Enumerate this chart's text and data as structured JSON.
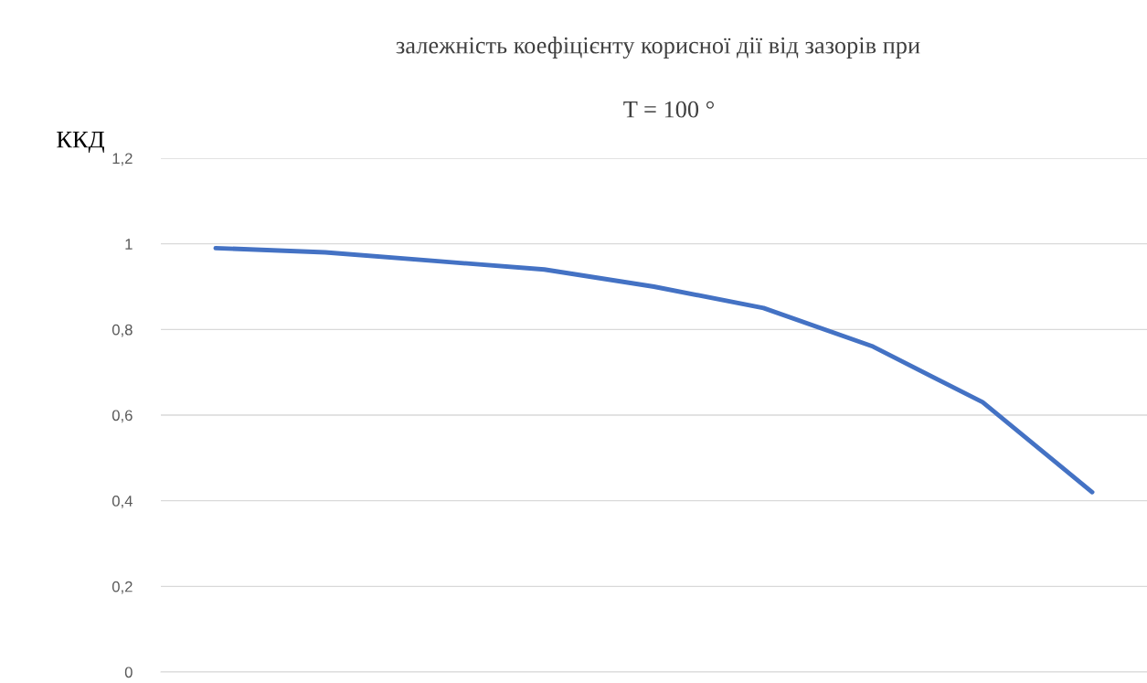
{
  "chart_data": {
    "type": "line",
    "title": "залежність коефіцієнту корисної дії від зазорів при",
    "subtitle": "T = 100 °",
    "ylabel": "ККД",
    "categories": [
      null,
      null,
      null,
      null,
      null,
      null,
      null,
      null,
      null
    ],
    "series": [
      {
        "color": "#4472c4",
        "values": [
          0.99,
          0.98,
          0.96,
          0.94,
          0.9,
          0.85,
          0.76,
          0.63,
          0.42
        ]
      }
    ],
    "ylim": [
      0,
      1.2
    ],
    "yticks": [
      0,
      {
        "value": 0.2,
        "label": "0,2"
      },
      {
        "value": 0.4,
        "label": "0,4"
      },
      {
        "value": 0.6,
        "label": "0,6"
      },
      {
        "value": 0.8,
        "label": "0,8"
      },
      1,
      {
        "value": 1.2,
        "label": "1,2"
      }
    ],
    "grid": "y",
    "tick_labels": "y",
    "marker": "none",
    "line_style": "solid",
    "legend": false
  }
}
